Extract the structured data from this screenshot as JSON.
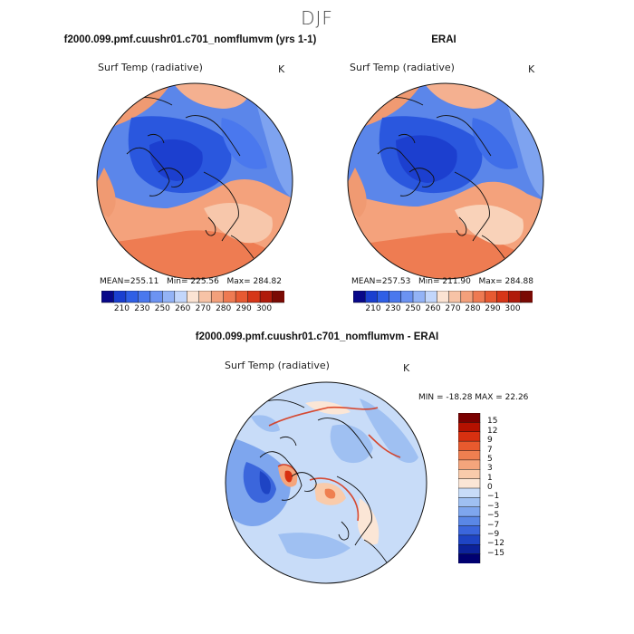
{
  "season": "DJF",
  "left_panel": {
    "title": "f2000.099.pmf.cuushr01.c701_nomflumvm (yrs 1-1)",
    "variable": "Surf Temp (radiative)",
    "units": "K",
    "mean_label": "MEAN=",
    "mean": "255.11",
    "min_label": "Min=",
    "min": "225.56",
    "max_label": "Max=",
    "max": "284.82"
  },
  "right_panel": {
    "title": "ERAI",
    "variable": "Surf Temp (radiative)",
    "units": "K",
    "mean_label": "MEAN=",
    "mean": "257.53",
    "min_label": "Min=",
    "min": "211.90",
    "max_label": "Max=",
    "max": "284.88"
  },
  "diff_panel": {
    "title": "f2000.099.pmf.cuushr01.c701_nomflumvm - ERAI",
    "variable": "Surf Temp (radiative)",
    "units": "K",
    "minmax": "MIN = -18.28  MAX =  22.26"
  },
  "abs_colorbar": {
    "colors": [
      "#08088a",
      "#1a3fd0",
      "#2f5fe6",
      "#4a78ee",
      "#6c93f2",
      "#93b3f6",
      "#c2d6fb",
      "#fbe3d3",
      "#f7c3a6",
      "#f3a07b",
      "#ee7a52",
      "#e75a32",
      "#d63618",
      "#b01a0a",
      "#7a0a04"
    ],
    "ticks": [
      "210",
      "230",
      "250",
      "260",
      "270",
      "280",
      "290",
      "300"
    ]
  },
  "diff_colorbar": {
    "colors": [
      "#7a0000",
      "#b41100",
      "#d83010",
      "#e85a2e",
      "#ef7f50",
      "#f4a57c",
      "#f9cbab",
      "#fbe6d6",
      "#c8dcf8",
      "#9fc0f2",
      "#7ea6ee",
      "#5a87e6",
      "#3b66dc",
      "#1e44c4",
      "#0c229a",
      "#000070"
    ],
    "ticks": [
      "15",
      "12",
      "9",
      "7",
      "5",
      "3",
      "1",
      "0",
      "−1",
      "−3",
      "−5",
      "−7",
      "−9",
      "−12",
      "−15"
    ]
  }
}
